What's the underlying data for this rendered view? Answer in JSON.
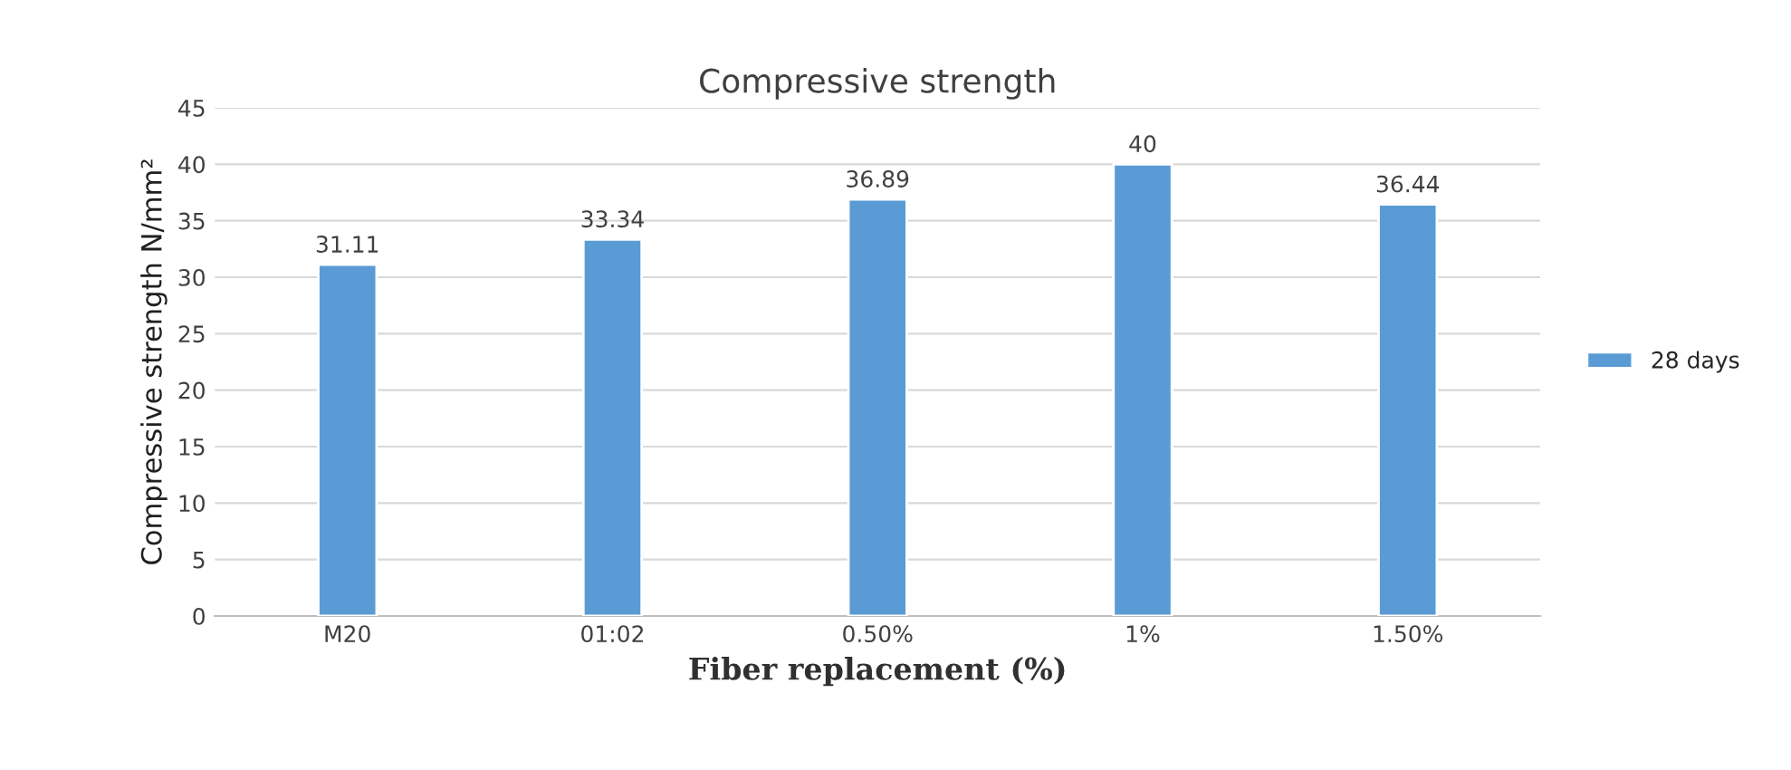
{
  "chart_data": {
    "type": "bar",
    "title": "Compressive strength",
    "xlabel": "Fiber replacement (%)",
    "ylabel": "Compressive strength N/mm²",
    "categories": [
      "M20",
      "01:02",
      "0.50%",
      "1%",
      "1.50%"
    ],
    "series": [
      {
        "name": "28 days",
        "color": "#5b9bd5",
        "values": [
          31.11,
          33.34,
          36.89,
          40,
          36.44
        ]
      }
    ],
    "ylim": [
      0,
      45
    ],
    "yticks": [
      0,
      5,
      10,
      15,
      20,
      25,
      30,
      35,
      40,
      45
    ],
    "grid": "y",
    "legend": "right",
    "data_labels": true
  }
}
